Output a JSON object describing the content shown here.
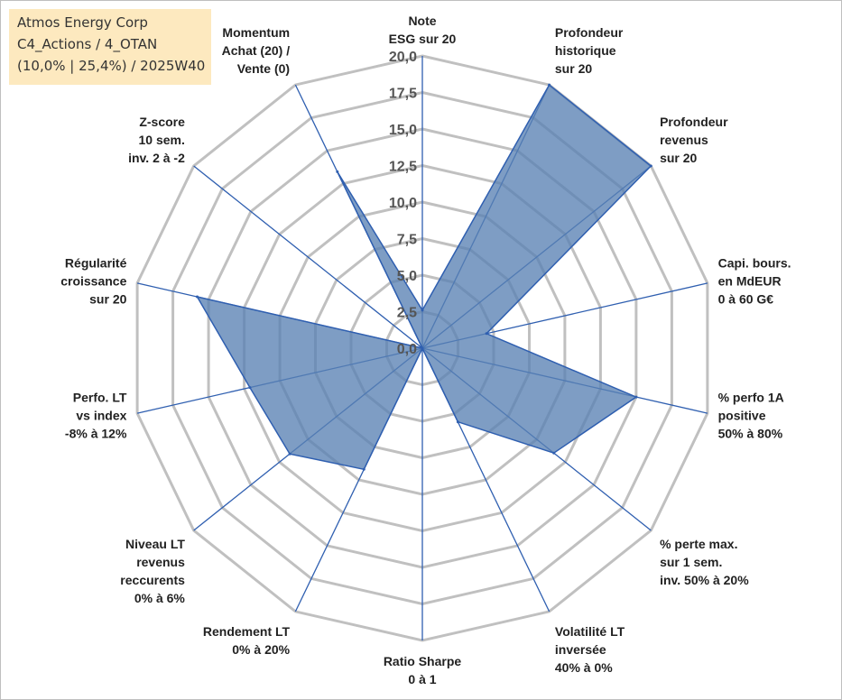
{
  "title_box": {
    "line1": "Atmos Energy Corp",
    "line2": "C4_Actions / 4_OTAN",
    "line3": "(10,0% | 25,4%) / 2025W40"
  },
  "colors": {
    "fill": "#5a82b4",
    "axis_line": "#2f5fb0",
    "grid": "#c0c0c0",
    "title_bg": "#fde9bf"
  },
  "chart_data": {
    "type": "radar",
    "title": "",
    "rmax": 20,
    "ticks": [
      "0,0",
      "2,5",
      "5,0",
      "7,5",
      "10,0",
      "12,5",
      "15,0",
      "17,5",
      "20,0"
    ],
    "axes": [
      {
        "label": [
          "Note",
          "ESG sur 20"
        ],
        "value": 2.6
      },
      {
        "label": [
          "Profondeur",
          "historique",
          "sur 20"
        ],
        "value": 20
      },
      {
        "label": [
          "Profondeur",
          "revenus",
          "sur 20"
        ],
        "value": 20
      },
      {
        "label": [
          "Capi. bours.",
          "en MdEUR",
          "0 à 60 G€"
        ],
        "value": 4.5
      },
      {
        "label": [
          "% perfo 1A",
          "positive",
          "50% à 80%"
        ],
        "value": 15.0
      },
      {
        "label": [
          "% perte max.",
          "sur 1 sem.",
          "inv. 50% à 20%"
        ],
        "value": 11.5
      },
      {
        "label": [
          "Volatilité LT",
          "inversée",
          "40% à 0%"
        ],
        "value": 5.6
      },
      {
        "label": [
          "Ratio Sharpe",
          "0 à 1"
        ],
        "value": 0.0
      },
      {
        "label": [
          "Rendement LT",
          "0% à 20%"
        ],
        "value": 9.2
      },
      {
        "label": [
          "Niveau LT",
          "revenus",
          "reccurents",
          "0% à 6%"
        ],
        "value": 11.6
      },
      {
        "label": [
          "Perfo. LT",
          "vs index",
          "-8% à 12%"
        ],
        "value": 12.1
      },
      {
        "label": [
          "Régularité",
          "croissance",
          "sur 20"
        ],
        "value": 15.8
      },
      {
        "label": [
          "Z-score",
          "10 sem.",
          "inv. 2 à -2"
        ],
        "value": 0.0
      },
      {
        "label": [
          "Momentum",
          "Achat (20) /",
          "Vente (0)"
        ],
        "value": 13.4
      }
    ]
  }
}
